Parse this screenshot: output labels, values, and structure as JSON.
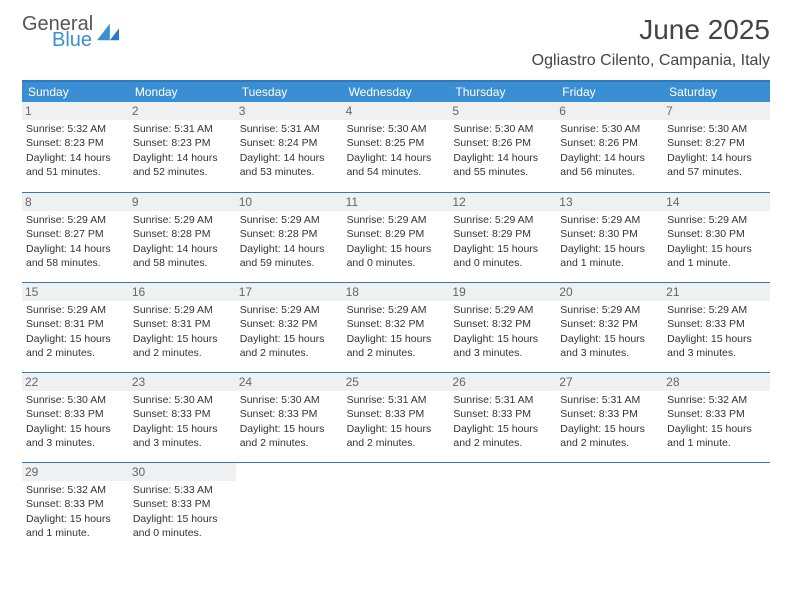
{
  "logo": {
    "general": "General",
    "blue": "Blue"
  },
  "title": "June 2025",
  "location": "Ogliastro Cilento, Campania, Italy",
  "colors": {
    "header_bg": "#3a8fd4",
    "border": "#2e7abf",
    "daynum_bg": "#eef0f1",
    "logo_blue": "#3a8fd4"
  },
  "weekdays": [
    "Sunday",
    "Monday",
    "Tuesday",
    "Wednesday",
    "Thursday",
    "Friday",
    "Saturday"
  ],
  "days": [
    {
      "n": "1",
      "sunrise": "5:32 AM",
      "sunset": "8:23 PM",
      "daylight": "14 hours and 51 minutes."
    },
    {
      "n": "2",
      "sunrise": "5:31 AM",
      "sunset": "8:23 PM",
      "daylight": "14 hours and 52 minutes."
    },
    {
      "n": "3",
      "sunrise": "5:31 AM",
      "sunset": "8:24 PM",
      "daylight": "14 hours and 53 minutes."
    },
    {
      "n": "4",
      "sunrise": "5:30 AM",
      "sunset": "8:25 PM",
      "daylight": "14 hours and 54 minutes."
    },
    {
      "n": "5",
      "sunrise": "5:30 AM",
      "sunset": "8:26 PM",
      "daylight": "14 hours and 55 minutes."
    },
    {
      "n": "6",
      "sunrise": "5:30 AM",
      "sunset": "8:26 PM",
      "daylight": "14 hours and 56 minutes."
    },
    {
      "n": "7",
      "sunrise": "5:30 AM",
      "sunset": "8:27 PM",
      "daylight": "14 hours and 57 minutes."
    },
    {
      "n": "8",
      "sunrise": "5:29 AM",
      "sunset": "8:27 PM",
      "daylight": "14 hours and 58 minutes."
    },
    {
      "n": "9",
      "sunrise": "5:29 AM",
      "sunset": "8:28 PM",
      "daylight": "14 hours and 58 minutes."
    },
    {
      "n": "10",
      "sunrise": "5:29 AM",
      "sunset": "8:28 PM",
      "daylight": "14 hours and 59 minutes."
    },
    {
      "n": "11",
      "sunrise": "5:29 AM",
      "sunset": "8:29 PM",
      "daylight": "15 hours and 0 minutes."
    },
    {
      "n": "12",
      "sunrise": "5:29 AM",
      "sunset": "8:29 PM",
      "daylight": "15 hours and 0 minutes."
    },
    {
      "n": "13",
      "sunrise": "5:29 AM",
      "sunset": "8:30 PM",
      "daylight": "15 hours and 1 minute."
    },
    {
      "n": "14",
      "sunrise": "5:29 AM",
      "sunset": "8:30 PM",
      "daylight": "15 hours and 1 minute."
    },
    {
      "n": "15",
      "sunrise": "5:29 AM",
      "sunset": "8:31 PM",
      "daylight": "15 hours and 2 minutes."
    },
    {
      "n": "16",
      "sunrise": "5:29 AM",
      "sunset": "8:31 PM",
      "daylight": "15 hours and 2 minutes."
    },
    {
      "n": "17",
      "sunrise": "5:29 AM",
      "sunset": "8:32 PM",
      "daylight": "15 hours and 2 minutes."
    },
    {
      "n": "18",
      "sunrise": "5:29 AM",
      "sunset": "8:32 PM",
      "daylight": "15 hours and 2 minutes."
    },
    {
      "n": "19",
      "sunrise": "5:29 AM",
      "sunset": "8:32 PM",
      "daylight": "15 hours and 3 minutes."
    },
    {
      "n": "20",
      "sunrise": "5:29 AM",
      "sunset": "8:32 PM",
      "daylight": "15 hours and 3 minutes."
    },
    {
      "n": "21",
      "sunrise": "5:29 AM",
      "sunset": "8:33 PM",
      "daylight": "15 hours and 3 minutes."
    },
    {
      "n": "22",
      "sunrise": "5:30 AM",
      "sunset": "8:33 PM",
      "daylight": "15 hours and 3 minutes."
    },
    {
      "n": "23",
      "sunrise": "5:30 AM",
      "sunset": "8:33 PM",
      "daylight": "15 hours and 3 minutes."
    },
    {
      "n": "24",
      "sunrise": "5:30 AM",
      "sunset": "8:33 PM",
      "daylight": "15 hours and 2 minutes."
    },
    {
      "n": "25",
      "sunrise": "5:31 AM",
      "sunset": "8:33 PM",
      "daylight": "15 hours and 2 minutes."
    },
    {
      "n": "26",
      "sunrise": "5:31 AM",
      "sunset": "8:33 PM",
      "daylight": "15 hours and 2 minutes."
    },
    {
      "n": "27",
      "sunrise": "5:31 AM",
      "sunset": "8:33 PM",
      "daylight": "15 hours and 2 minutes."
    },
    {
      "n": "28",
      "sunrise": "5:32 AM",
      "sunset": "8:33 PM",
      "daylight": "15 hours and 1 minute."
    },
    {
      "n": "29",
      "sunrise": "5:32 AM",
      "sunset": "8:33 PM",
      "daylight": "15 hours and 1 minute."
    },
    {
      "n": "30",
      "sunrise": "5:33 AM",
      "sunset": "8:33 PM",
      "daylight": "15 hours and 0 minutes."
    }
  ],
  "labels": {
    "sunrise": "Sunrise:",
    "sunset": "Sunset:",
    "daylight": "Daylight:"
  }
}
